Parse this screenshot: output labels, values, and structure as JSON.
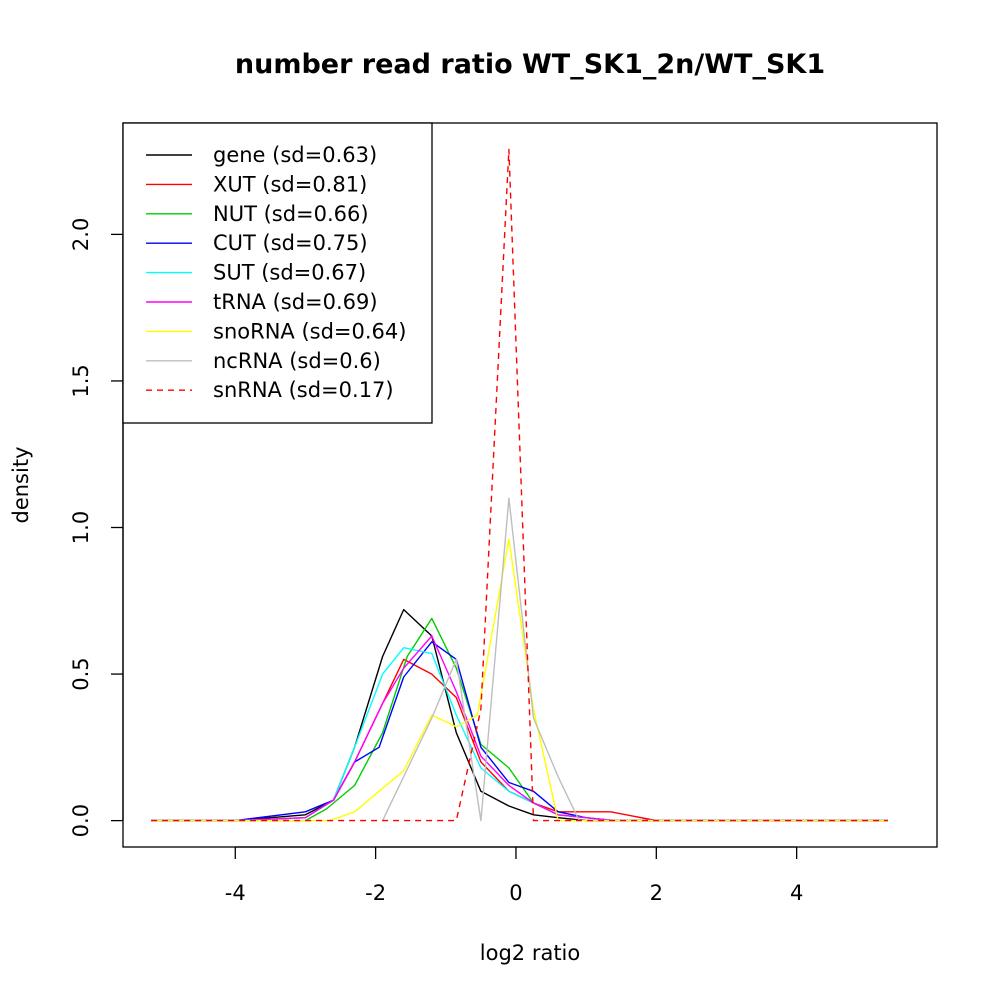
{
  "chart_data": {
    "type": "line",
    "title": "number read ratio WT_SK1_2n/WT_SK1",
    "xlabel": "log2 ratio",
    "ylabel": "density",
    "xlim": [
      -5.6,
      6.0
    ],
    "ylim": [
      -0.09,
      2.38
    ],
    "xticks": [
      -4,
      -2,
      0,
      2,
      4
    ],
    "xtick_labels": [
      "-4",
      "-2",
      "0",
      "2",
      "4"
    ],
    "yticks": [
      0.0,
      0.5,
      1.0,
      1.5,
      2.0
    ],
    "ytick_labels": [
      "0.0",
      "0.5",
      "1.0",
      "1.5",
      "2.0"
    ],
    "grid": false,
    "legend_position": "top-left",
    "series": [
      {
        "name": "gene (sd=0.63)",
        "color": "#000000",
        "dash": "solid",
        "x": [
          -5.2,
          -4.0,
          -3.0,
          -2.6,
          -2.3,
          -1.9,
          -1.6,
          -1.2,
          -0.85,
          -0.5,
          -0.1,
          0.25,
          0.6,
          1.0,
          1.3,
          2.0,
          5.3
        ],
        "y": [
          0.0,
          0.0,
          0.02,
          0.07,
          0.25,
          0.56,
          0.72,
          0.63,
          0.3,
          0.1,
          0.05,
          0.02,
          0.01,
          0.0,
          0.0,
          0.0,
          0.0
        ]
      },
      {
        "name": "XUT (sd=0.81)",
        "color": "#ff0000",
        "dash": "solid",
        "x": [
          -5.2,
          -4.0,
          -3.0,
          -2.6,
          -2.3,
          -1.9,
          -1.6,
          -1.2,
          -0.85,
          -0.5,
          -0.1,
          0.25,
          0.6,
          0.95,
          1.35,
          2.0,
          5.3
        ],
        "y": [
          0.0,
          0.0,
          0.01,
          0.07,
          0.2,
          0.4,
          0.55,
          0.5,
          0.42,
          0.2,
          0.1,
          0.06,
          0.03,
          0.03,
          0.03,
          0.0,
          0.0
        ]
      },
      {
        "name": "NUT (sd=0.66)",
        "color": "#00cd00",
        "dash": "solid",
        "x": [
          -5.2,
          -4.0,
          -3.0,
          -2.7,
          -2.3,
          -1.9,
          -1.55,
          -1.2,
          -0.85,
          -0.5,
          -0.1,
          0.25,
          0.6,
          1.0,
          1.4,
          2.0,
          5.3
        ],
        "y": [
          0.0,
          0.0,
          0.0,
          0.04,
          0.12,
          0.3,
          0.56,
          0.69,
          0.52,
          0.26,
          0.18,
          0.06,
          0.02,
          0.01,
          0.0,
          0.0,
          0.0
        ]
      },
      {
        "name": "CUT (sd=0.75)",
        "color": "#0000ff",
        "dash": "solid",
        "x": [
          -5.2,
          -4.0,
          -3.0,
          -2.6,
          -2.3,
          -1.95,
          -1.6,
          -1.2,
          -0.85,
          -0.5,
          -0.1,
          0.25,
          0.6,
          1.0,
          1.4,
          2.0,
          5.3
        ],
        "y": [
          0.0,
          0.0,
          0.03,
          0.07,
          0.2,
          0.25,
          0.49,
          0.61,
          0.55,
          0.25,
          0.13,
          0.1,
          0.03,
          0.01,
          0.0,
          0.0,
          0.0
        ]
      },
      {
        "name": "SUT (sd=0.67)",
        "color": "#00ffff",
        "dash": "solid",
        "x": [
          -5.2,
          -4.0,
          -3.0,
          -2.6,
          -2.3,
          -1.9,
          -1.6,
          -1.2,
          -0.85,
          -0.5,
          -0.1,
          0.25,
          0.6,
          1.0,
          1.4,
          2.0,
          5.3
        ],
        "y": [
          0.0,
          0.0,
          0.01,
          0.07,
          0.25,
          0.5,
          0.59,
          0.57,
          0.36,
          0.18,
          0.1,
          0.06,
          0.02,
          0.01,
          0.0,
          0.0,
          0.0
        ]
      },
      {
        "name": "tRNA (sd=0.69)",
        "color": "#ff00ff",
        "dash": "solid",
        "x": [
          -5.2,
          -4.0,
          -3.0,
          -2.6,
          -2.3,
          -1.9,
          -1.6,
          -1.2,
          -0.85,
          -0.5,
          -0.1,
          0.25,
          0.6,
          1.0,
          1.4,
          2.0,
          5.3
        ],
        "y": [
          0.0,
          0.0,
          0.01,
          0.07,
          0.2,
          0.4,
          0.52,
          0.63,
          0.44,
          0.22,
          0.12,
          0.06,
          0.02,
          0.01,
          0.0,
          0.0,
          0.0
        ]
      },
      {
        "name": "snoRNA (sd=0.64)",
        "color": "#ffff00",
        "dash": "solid",
        "x": [
          -5.2,
          -4.0,
          -3.0,
          -2.65,
          -2.3,
          -1.95,
          -1.6,
          -1.2,
          -0.85,
          -0.55,
          -0.1,
          0.25,
          0.6,
          1.0,
          1.4,
          2.0,
          5.3
        ],
        "y": [
          0.0,
          0.0,
          0.0,
          0.0,
          0.03,
          0.1,
          0.17,
          0.36,
          0.32,
          0.36,
          0.96,
          0.38,
          0.0,
          0.0,
          0.0,
          0.0,
          0.0
        ]
      },
      {
        "name": "ncRNA (sd=0.6)",
        "color": "#bebebe",
        "dash": "solid",
        "x": [
          -1.9,
          -1.2,
          -0.85,
          -0.5,
          -0.1,
          0.25,
          0.6,
          0.9
        ],
        "y": [
          0.0,
          0.35,
          0.55,
          0.0,
          1.1,
          0.35,
          0.15,
          0.0
        ]
      },
      {
        "name": "snRNA (sd=0.17)",
        "color": "#ff0000",
        "dash": "dashed",
        "x": [
          -5.2,
          -0.85,
          -0.5,
          -0.1,
          0.25,
          5.3
        ],
        "y": [
          0.0,
          0.0,
          0.38,
          2.29,
          0.0,
          0.0
        ]
      }
    ]
  }
}
